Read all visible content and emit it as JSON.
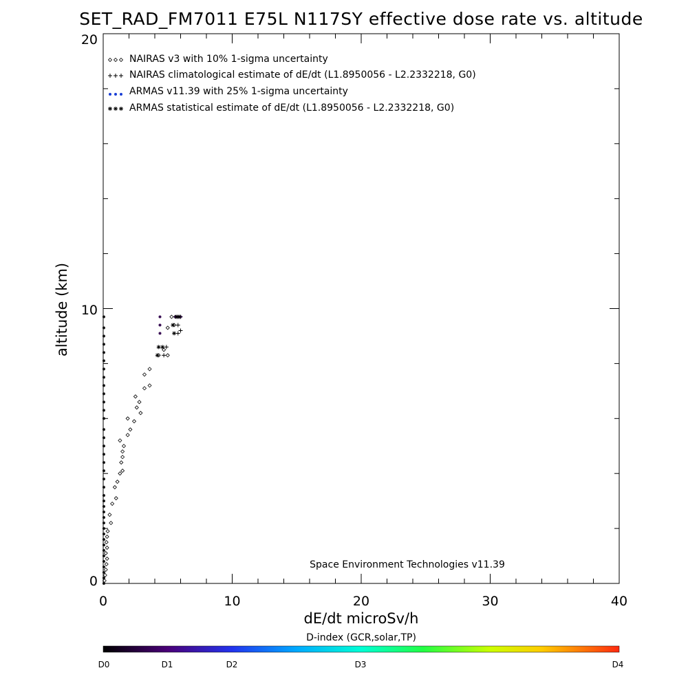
{
  "chart_data": {
    "type": "scatter",
    "title": "SET_RAD_FM7011  E75L N117SY effective dose rate vs. altitude",
    "xlabel": "dE/dt microSv/h",
    "ylabel": "altitude (km)",
    "xlim": [
      0,
      40
    ],
    "ylim": [
      0,
      20
    ],
    "x_ticks": [
      "0",
      "10",
      "20",
      "30",
      "40"
    ],
    "y_ticks": [
      "0",
      "10",
      "20"
    ],
    "legend_position": "top-left",
    "legend": [
      {
        "marker": "diamond",
        "text": "NAIRAS v3 with 10% 1-sigma uncertainty"
      },
      {
        "marker": "plus",
        "text": "NAIRAS climatological estimate of dE/dt (L1.8950056 - L2.2332218, G0)"
      },
      {
        "marker": "dot",
        "text": "ARMAS v11.39 with 25% 1-sigma uncertainty"
      },
      {
        "marker": "star",
        "text": "ARMAS statistical estimate of dE/dt (L1.8950056 - L2.2332218, G0)"
      }
    ],
    "annotation": "Space Environment Technologies v11.39",
    "colorbar": {
      "title": "D-index (GCR,solar,TP)",
      "labels": [
        "D0",
        "D1",
        "D2",
        "D3",
        "D4"
      ],
      "label_values": [
        0,
        0.5,
        1,
        2,
        4
      ]
    },
    "series": [
      {
        "name": "NAIRAS v3 with 10% 1-sigma uncertainty",
        "marker": "diamond",
        "points": [
          [
            0.1,
            0.1
          ],
          [
            0.15,
            0.3
          ],
          [
            0.2,
            0.5
          ],
          [
            0.25,
            0.7
          ],
          [
            0.3,
            0.9
          ],
          [
            0.2,
            1.1
          ],
          [
            0.3,
            1.3
          ],
          [
            0.25,
            1.5
          ],
          [
            0.3,
            1.7
          ],
          [
            0.35,
            1.9
          ],
          [
            0.6,
            2.2
          ],
          [
            0.5,
            2.5
          ],
          [
            0.7,
            2.9
          ],
          [
            1.0,
            3.1
          ],
          [
            0.9,
            3.5
          ],
          [
            1.1,
            3.7
          ],
          [
            1.3,
            4.0
          ],
          [
            1.5,
            4.1
          ],
          [
            1.4,
            4.4
          ],
          [
            1.5,
            4.6
          ],
          [
            1.5,
            4.8
          ],
          [
            1.6,
            5.0
          ],
          [
            1.3,
            5.2
          ],
          [
            1.9,
            5.4
          ],
          [
            2.1,
            5.6
          ],
          [
            2.4,
            5.9
          ],
          [
            1.9,
            6.0
          ],
          [
            2.9,
            6.2
          ],
          [
            2.6,
            6.4
          ],
          [
            2.8,
            6.6
          ],
          [
            2.5,
            6.8
          ],
          [
            3.2,
            7.1
          ],
          [
            3.6,
            7.2
          ],
          [
            3.2,
            7.6
          ],
          [
            3.6,
            7.8
          ],
          [
            4.3,
            8.3
          ],
          [
            5.0,
            8.3
          ],
          [
            4.7,
            8.5
          ],
          [
            5.0,
            9.3
          ],
          [
            5.5,
            9.4
          ],
          [
            5.3,
            9.7
          ],
          [
            5.6,
            9.7
          ]
        ]
      },
      {
        "name": "NAIRAS climatological estimate of dE/dt (L1.8950056 - L2.2332218, G0)",
        "marker": "plus",
        "points": [
          [
            4.7,
            8.3
          ],
          [
            4.9,
            8.6
          ],
          [
            5.8,
            9.1
          ],
          [
            6.0,
            9.2
          ],
          [
            5.8,
            9.4
          ],
          [
            5.8,
            9.7
          ],
          [
            6.0,
            9.7
          ]
        ]
      },
      {
        "name": "ARMAS v11.39 with 25% 1-sigma uncertainty",
        "marker": "dot",
        "points": [
          [
            0.05,
            0.0
          ],
          [
            0.05,
            0.2
          ],
          [
            0.05,
            0.4
          ],
          [
            0.05,
            0.6
          ],
          [
            0.05,
            0.8
          ],
          [
            0.05,
            1.0
          ],
          [
            0.05,
            1.2
          ],
          [
            0.05,
            1.4
          ],
          [
            0.05,
            1.6
          ],
          [
            0.05,
            1.8
          ],
          [
            0.05,
            2.0
          ],
          [
            0.05,
            2.2
          ],
          [
            0.05,
            2.4
          ],
          [
            0.05,
            2.6
          ],
          [
            0.05,
            2.8
          ],
          [
            0.05,
            3.0
          ],
          [
            0.05,
            3.2
          ],
          [
            0.05,
            3.5
          ],
          [
            0.05,
            3.8
          ],
          [
            0.05,
            4.1
          ],
          [
            0.05,
            4.4
          ],
          [
            0.05,
            4.7
          ],
          [
            0.05,
            5.0
          ],
          [
            0.05,
            5.3
          ],
          [
            0.05,
            5.6
          ],
          [
            0.05,
            6.0
          ],
          [
            0.05,
            6.3
          ],
          [
            0.05,
            6.6
          ],
          [
            0.05,
            6.9
          ],
          [
            0.05,
            7.2
          ],
          [
            0.05,
            7.5
          ],
          [
            0.05,
            7.8
          ],
          [
            0.05,
            8.1
          ],
          [
            0.05,
            8.4
          ],
          [
            0.05,
            8.7
          ],
          [
            0.05,
            9.0
          ],
          [
            0.05,
            9.3
          ],
          [
            0.05,
            9.7
          ],
          [
            4.4,
            9.1
          ],
          [
            4.4,
            9.4
          ],
          [
            4.4,
            9.7
          ],
          [
            5.6,
            9.7
          ],
          [
            5.8,
            9.7
          ],
          [
            6.0,
            9.7
          ]
        ]
      },
      {
        "name": "ARMAS statistical estimate of dE/dt (L1.8950056 - L2.2332218, G0)",
        "marker": "star",
        "points": [
          [
            4.2,
            8.3
          ],
          [
            4.3,
            8.6
          ],
          [
            4.6,
            8.6
          ],
          [
            5.5,
            9.1
          ],
          [
            5.4,
            9.4
          ],
          [
            5.7,
            9.7
          ],
          [
            5.9,
            9.7
          ]
        ]
      }
    ]
  }
}
